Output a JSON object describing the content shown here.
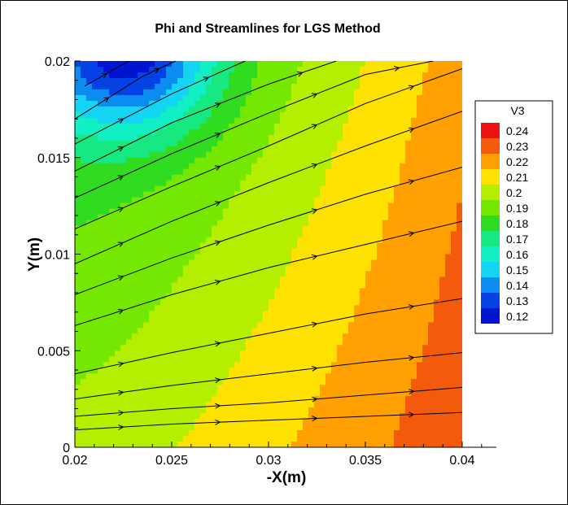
{
  "chart_data": {
    "type": "heatmap",
    "title": "Phi and Streamlines for LGS Method",
    "xlabel": "-X(m)",
    "ylabel": "Y(m)",
    "xlim": [
      0.02,
      0.04
    ],
    "ylim": [
      0,
      0.02
    ],
    "x_ticks": [
      "0.02",
      "0.025",
      "0.03",
      "0.035",
      "0.04"
    ],
    "y_ticks": [
      "0",
      "0.005",
      "0.01",
      "0.015",
      "0.02"
    ],
    "legend": {
      "title": "V3",
      "placement": "right",
      "levels": [
        {
          "label": "0.24",
          "color": "#ee1111"
        },
        {
          "label": "0.23",
          "color": "#f45a0c"
        },
        {
          "label": "0.22",
          "color": "#ffa000"
        },
        {
          "label": "0.21",
          "color": "#ffe100"
        },
        {
          "label": "0.2",
          "color": "#b4ee00"
        },
        {
          "label": "0.19",
          "color": "#74e800"
        },
        {
          "label": "0.18",
          "color": "#30dc20"
        },
        {
          "label": "0.17",
          "color": "#16e882"
        },
        {
          "label": "0.16",
          "color": "#10f0c4"
        },
        {
          "label": "0.15",
          "color": "#14d4f4"
        },
        {
          "label": "0.14",
          "color": "#0a8cf0"
        },
        {
          "label": "0.13",
          "color": "#0442e6"
        },
        {
          "label": "0.12",
          "color": "#0014d2"
        }
      ]
    },
    "streamlines": [
      {
        "name": "",
        "points": [
          [
            0.02,
            0.0009
          ],
          [
            0.025,
            0.0012
          ],
          [
            0.03,
            0.0014
          ],
          [
            0.035,
            0.0016
          ],
          [
            0.04,
            0.0018
          ]
        ]
      },
      {
        "name": "",
        "points": [
          [
            0.02,
            0.0016
          ],
          [
            0.025,
            0.002
          ],
          [
            0.03,
            0.0023
          ],
          [
            0.035,
            0.0027
          ],
          [
            0.04,
            0.0031
          ]
        ]
      },
      {
        "name": "",
        "points": [
          [
            0.02,
            0.0025
          ],
          [
            0.025,
            0.0032
          ],
          [
            0.03,
            0.0038
          ],
          [
            0.035,
            0.0044
          ],
          [
            0.04,
            0.0049
          ]
        ]
      },
      {
        "name": "",
        "points": [
          [
            0.02,
            0.0038
          ],
          [
            0.025,
            0.0049
          ],
          [
            0.03,
            0.0059
          ],
          [
            0.035,
            0.0069
          ],
          [
            0.04,
            0.0077
          ]
        ]
      },
      {
        "name": "",
        "points": [
          [
            0.02,
            0.0063
          ],
          [
            0.025,
            0.0079
          ],
          [
            0.03,
            0.0093
          ],
          [
            0.035,
            0.0105
          ],
          [
            0.04,
            0.0117
          ]
        ]
      },
      {
        "name": "",
        "points": [
          [
            0.02,
            0.0079
          ],
          [
            0.025,
            0.0098
          ],
          [
            0.03,
            0.0115
          ],
          [
            0.035,
            0.0131
          ],
          [
            0.04,
            0.0145
          ]
        ]
      },
      {
        "name": "",
        "points": [
          [
            0.02,
            0.0095
          ],
          [
            0.025,
            0.0117
          ],
          [
            0.03,
            0.0137
          ],
          [
            0.035,
            0.0156
          ],
          [
            0.04,
            0.0174
          ]
        ]
      },
      {
        "name": "",
        "points": [
          [
            0.02,
            0.0113
          ],
          [
            0.025,
            0.0135
          ],
          [
            0.03,
            0.0156
          ],
          [
            0.035,
            0.0178
          ],
          [
            0.04,
            0.0196
          ]
        ]
      },
      {
        "name": "",
        "points": [
          [
            0.02,
            0.0129
          ],
          [
            0.025,
            0.0152
          ],
          [
            0.03,
            0.0173
          ],
          [
            0.035,
            0.0193
          ],
          [
            0.0385,
            0.02
          ]
        ]
      },
      {
        "name": "",
        "points": [
          [
            0.02,
            0.0143
          ],
          [
            0.025,
            0.0168
          ],
          [
            0.03,
            0.0188
          ],
          [
            0.0335,
            0.02
          ]
        ]
      },
      {
        "name": "",
        "points": [
          [
            0.02,
            0.0157
          ],
          [
            0.025,
            0.0183
          ],
          [
            0.0288,
            0.02
          ]
        ]
      },
      {
        "name": "",
        "points": [
          [
            0.02,
            0.017
          ],
          [
            0.0235,
            0.0192
          ],
          [
            0.0252,
            0.02
          ]
        ]
      },
      {
        "name": "",
        "points": [
          [
            0.0205,
            0.0187
          ],
          [
            0.0228,
            0.02
          ]
        ]
      }
    ],
    "field": {
      "description": "cell values of V3 over the domain",
      "x": [
        0.02,
        0.022,
        0.024,
        0.026,
        0.028,
        0.03,
        0.032,
        0.034,
        0.036,
        0.038,
        0.04
      ],
      "y": [
        0.0,
        0.002,
        0.004,
        0.006,
        0.008,
        0.01,
        0.012,
        0.014,
        0.016,
        0.018,
        0.02
      ]
    }
  }
}
